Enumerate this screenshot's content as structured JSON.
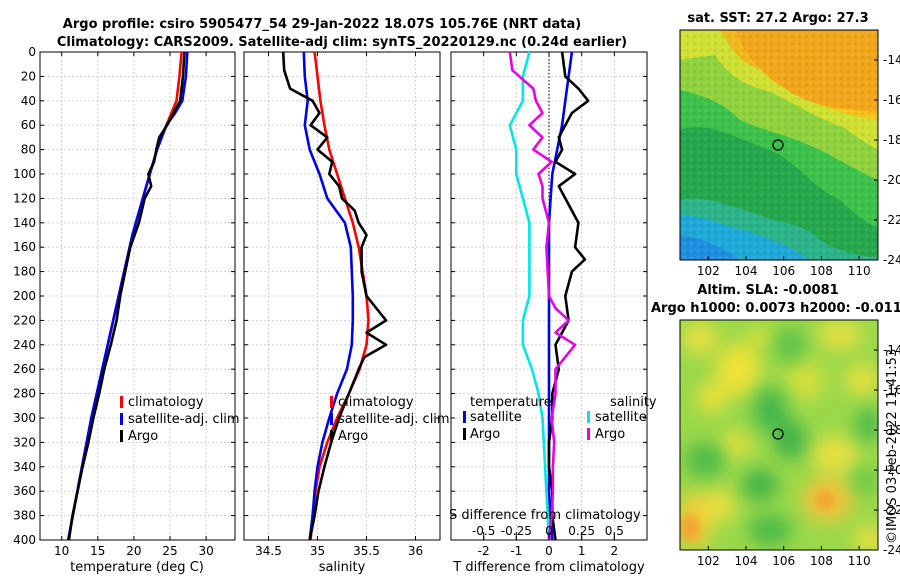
{
  "figure": {
    "title_line1": "Argo profile: csiro 5905477_54 29-Jan-2022 18.07S 105.76E (NRT data)",
    "title_line2": "Climatology: CARS2009. Satellite-adj clim: synTS_20220129.nc (0.24d earlier)",
    "timestamp": "©IMOS 03-Feb-2022 11:41:53"
  },
  "colors": {
    "climatology": "#ff0000",
    "satellite": "#0000e6",
    "argo": "#000000",
    "sat_salinity": "#00e6e6",
    "argo_salinity": "#e600e6"
  },
  "chart_data": [
    {
      "type": "line",
      "id": "temperature",
      "xlabel": "temperature (deg C)",
      "ylabel": "",
      "xlim": [
        7,
        34
      ],
      "ylim": [
        400,
        0
      ],
      "xticks": [
        10,
        15,
        20,
        25,
        30
      ],
      "yticks": [
        0,
        20,
        40,
        60,
        80,
        100,
        120,
        140,
        160,
        180,
        200,
        220,
        240,
        260,
        280,
        300,
        320,
        340,
        360,
        380,
        400
      ],
      "legend": [
        "climatology",
        "satellite-adj. clim",
        "Argo"
      ],
      "series": [
        {
          "name": "climatology",
          "color": "#ff0000",
          "depth": [
            0,
            20,
            40,
            60,
            80,
            100,
            150,
            200,
            250,
            300,
            350,
            400
          ],
          "values": [
            26.6,
            26.3,
            25.9,
            24.5,
            23.2,
            22.2,
            19.8,
            17.9,
            16.0,
            14.1,
            12.5,
            10.9
          ]
        },
        {
          "name": "satellite-adj. clim",
          "color": "#0000e6",
          "depth": [
            0,
            20,
            40,
            50,
            60,
            80,
            100,
            150,
            200,
            250,
            300,
            350,
            400
          ],
          "values": [
            27.4,
            27.2,
            26.7,
            25.7,
            24.5,
            23.2,
            22.2,
            19.8,
            17.9,
            16.0,
            14.1,
            12.5,
            10.9
          ]
        },
        {
          "name": "Argo",
          "color": "#000000",
          "depth": [
            0,
            20,
            40,
            50,
            60,
            70,
            80,
            90,
            100,
            110,
            120,
            140,
            160,
            180,
            200,
            220,
            240,
            260,
            280,
            300,
            320,
            340,
            360,
            380,
            400
          ],
          "values": [
            27.0,
            26.8,
            26.4,
            25.5,
            24.6,
            23.5,
            23.1,
            22.8,
            22.0,
            22.4,
            21.5,
            20.7,
            19.5,
            18.8,
            18.1,
            17.6,
            16.8,
            15.9,
            15.2,
            14.4,
            13.7,
            12.9,
            12.2,
            11.5,
            11.0
          ]
        }
      ]
    },
    {
      "type": "line",
      "id": "salinity",
      "xlabel": "salinity",
      "ylabel": "",
      "xlim": [
        34.25,
        36.25
      ],
      "ylim": [
        400,
        0
      ],
      "xticks": [
        34.5,
        35,
        35.5,
        36
      ],
      "yticks": [
        0,
        20,
        40,
        60,
        80,
        100,
        120,
        140,
        160,
        180,
        200,
        220,
        240,
        260,
        280,
        300,
        320,
        340,
        360,
        380,
        400
      ],
      "legend": [
        "climatology",
        "satellite-adj. clim",
        "Argo"
      ],
      "series": [
        {
          "name": "climatology",
          "color": "#ff0000",
          "depth": [
            0,
            20,
            40,
            60,
            80,
            100,
            120,
            140,
            160,
            180,
            200,
            220,
            240,
            260,
            280,
            300,
            320,
            340,
            360,
            380,
            400
          ],
          "values": [
            34.97,
            35.0,
            35.03,
            35.07,
            35.12,
            35.2,
            35.28,
            35.36,
            35.42,
            35.46,
            35.5,
            35.52,
            35.5,
            35.43,
            35.32,
            35.2,
            35.1,
            35.02,
            34.98,
            34.95,
            34.93
          ]
        },
        {
          "name": "satellite-adj. clim",
          "color": "#0000e6",
          "depth": [
            0,
            20,
            40,
            60,
            80,
            100,
            120,
            140,
            160,
            180,
            200,
            220,
            240,
            260,
            280,
            300,
            320,
            340,
            360,
            380,
            400
          ],
          "values": [
            34.86,
            34.87,
            34.9,
            34.87,
            34.92,
            35.02,
            35.1,
            35.28,
            35.34,
            35.35,
            35.36,
            35.36,
            35.35,
            35.3,
            35.2,
            35.12,
            35.05,
            35.0,
            34.97,
            34.95,
            34.92
          ]
        },
        {
          "name": "Argo",
          "color": "#000000",
          "depth": [
            0,
            15,
            30,
            40,
            50,
            60,
            70,
            80,
            90,
            100,
            110,
            120,
            130,
            140,
            150,
            160,
            180,
            200,
            210,
            220,
            230,
            240,
            250,
            260,
            280,
            300,
            320,
            340,
            360,
            380,
            400
          ],
          "values": [
            34.65,
            34.66,
            34.72,
            34.95,
            35.02,
            34.93,
            35.1,
            35.0,
            35.15,
            35.12,
            35.22,
            35.25,
            35.38,
            35.42,
            35.5,
            35.45,
            35.45,
            35.5,
            35.6,
            35.7,
            35.5,
            35.7,
            35.48,
            35.42,
            35.32,
            35.22,
            35.14,
            35.07,
            35.01,
            34.97,
            34.92
          ]
        }
      ]
    },
    {
      "type": "line",
      "id": "difference",
      "xlabel": "T difference from climatology",
      "xlabel2": "S difference from climatology",
      "xlim": [
        -3,
        3
      ],
      "ylim": [
        400,
        0
      ],
      "xticks": [
        -2,
        -1,
        0,
        1,
        2
      ],
      "xticks2": [
        "-0.5",
        "-0.25",
        "0",
        "0.25",
        "0.5"
      ],
      "yticks": [
        0,
        20,
        40,
        60,
        80,
        100,
        120,
        140,
        160,
        180,
        200,
        220,
        240,
        260,
        280,
        300,
        320,
        340,
        360,
        380,
        400
      ],
      "legend_temperature_heading": "temperature",
      "legend_salinity_heading": "salinity",
      "legend_temperature": [
        "satellite",
        "Argo"
      ],
      "legend_salinity": [
        "satellite",
        "Argo"
      ],
      "series": [
        {
          "name": "T satellite",
          "color": "#0000e6",
          "depth": [
            0,
            20,
            40,
            60,
            80,
            100,
            120,
            140,
            160,
            180,
            200,
            240,
            280,
            320,
            360,
            400
          ],
          "values": [
            0.7,
            0.6,
            0.5,
            0.4,
            0.25,
            0.1,
            0.05,
            0,
            0,
            0,
            0,
            0,
            0,
            0,
            0,
            0.1
          ]
        },
        {
          "name": "T Argo",
          "color": "#000000",
          "depth": [
            0,
            20,
            30,
            40,
            50,
            60,
            70,
            80,
            90,
            100,
            110,
            120,
            140,
            160,
            170,
            180,
            200,
            220,
            230,
            240,
            260,
            280,
            300,
            320,
            340,
            360,
            380,
            400
          ],
          "values": [
            0.4,
            0.5,
            0.9,
            1.2,
            0.7,
            0.5,
            0.3,
            0.4,
            0.2,
            0.8,
            0.3,
            0.5,
            0.9,
            0.8,
            1.1,
            0.7,
            0.5,
            0.6,
            0.4,
            0.2,
            0.3,
            0.1,
            0.1,
            0,
            0,
            0.1,
            0.1,
            0.2
          ]
        },
        {
          "name": "S satellite",
          "color": "#00e6e6",
          "depth": [
            0,
            20,
            40,
            60,
            80,
            100,
            120,
            140,
            160,
            180,
            200,
            220,
            240,
            260,
            280,
            300,
            320,
            340,
            360,
            380,
            400
          ],
          "values": [
            -0.15,
            -0.2,
            -0.2,
            -0.3,
            -0.25,
            -0.25,
            -0.2,
            -0.15,
            -0.15,
            -0.15,
            -0.15,
            -0.2,
            -0.2,
            -0.13,
            -0.08,
            -0.05,
            -0.04,
            -0.03,
            -0.02,
            -0.01,
            0
          ]
        },
        {
          "name": "S Argo",
          "color": "#e600e6",
          "depth": [
            0,
            15,
            30,
            40,
            50,
            60,
            70,
            80,
            90,
            100,
            110,
            120,
            140,
            160,
            180,
            200,
            210,
            220,
            230,
            240,
            260,
            280,
            300,
            320,
            340,
            360,
            380,
            400
          ],
          "values": [
            -0.3,
            -0.28,
            -0.12,
            -0.1,
            -0.05,
            -0.15,
            -0.05,
            -0.12,
            0.02,
            -0.08,
            -0.05,
            -0.05,
            0,
            -0.02,
            -0.01,
            0,
            0.05,
            0.15,
            0.05,
            0.2,
            0.05,
            0.05,
            0.02,
            0.04,
            0.03,
            0.03,
            0.02,
            0
          ]
        }
      ]
    },
    {
      "type": "heatmap",
      "id": "sst_map",
      "title": "sat. SST: 27.2 Argo: 27.3",
      "xlim": [
        100.5,
        111
      ],
      "ylim": [
        -24,
        -12.5
      ],
      "xticks": [
        "102",
        "104",
        "106",
        "108",
        "110"
      ],
      "yticks": [
        "-14",
        "-16",
        "-18",
        "-20",
        "-22",
        "-24"
      ],
      "marker": {
        "lon": 105.76,
        "lat": -18.07
      }
    },
    {
      "type": "heatmap",
      "id": "sla_map",
      "title_line1": "Altim. SLA: -0.0081",
      "title_line2": "Argo h1000: 0.0073 h2000: -0.011",
      "xlim": [
        100.5,
        111
      ],
      "ylim": [
        -24,
        -12.5
      ],
      "xticks": [
        "102",
        "104",
        "106",
        "108",
        "110"
      ],
      "yticks": [
        "-14",
        "-16",
        "-18",
        "-20",
        "-22",
        "-24"
      ],
      "marker": {
        "lon": 105.76,
        "lat": -18.07
      }
    }
  ]
}
